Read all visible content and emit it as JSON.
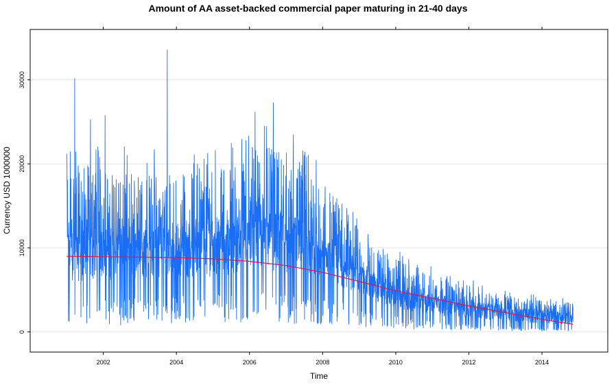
{
  "chart_data": {
    "type": "line",
    "title": "Amount of AA asset-backed commercial paper maturing in 21-40 days",
    "xlabel": "Time",
    "ylabel": "Currency USD 1000000",
    "xlim": [
      2000.0,
      2015.8
    ],
    "ylim": [
      -2400,
      36000
    ],
    "x_ticks": [
      2002,
      2004,
      2006,
      2008,
      2010,
      2012,
      2014
    ],
    "y_ticks": [
      0,
      10000,
      20000,
      30000
    ],
    "grid": "horizontal",
    "series": [
      {
        "color": "#1a6ef5",
        "kind": "daily-values",
        "x_range": [
          2001.0,
          2014.85
        ],
        "approx_band": [
          {
            "x": 2001.0,
            "low": 4000,
            "mid": 9000,
            "high": 20000
          },
          {
            "x": 2003.0,
            "low": 4000,
            "mid": 9500,
            "high": 19000
          },
          {
            "x": 2005.0,
            "low": 4500,
            "mid": 9500,
            "high": 19000
          },
          {
            "x": 2006.5,
            "low": 5000,
            "mid": 11000,
            "high": 22000
          },
          {
            "x": 2007.5,
            "low": 4500,
            "mid": 10000,
            "high": 20000
          },
          {
            "x": 2008.5,
            "low": 3500,
            "mid": 7500,
            "high": 15000
          },
          {
            "x": 2009.5,
            "low": 2500,
            "mid": 5000,
            "high": 10000
          },
          {
            "x": 2010.5,
            "low": 1500,
            "mid": 3500,
            "high": 7500
          },
          {
            "x": 2011.5,
            "low": 1000,
            "mid": 3000,
            "high": 6000
          },
          {
            "x": 2012.5,
            "low": 800,
            "mid": 2500,
            "high": 5000
          },
          {
            "x": 2013.5,
            "low": 500,
            "mid": 2000,
            "high": 4000
          },
          {
            "x": 2014.85,
            "low": 300,
            "mid": 1500,
            "high": 3500
          }
        ],
        "spikes": [
          {
            "x": 2001.22,
            "y": 30200
          },
          {
            "x": 2003.75,
            "y": 33600
          },
          {
            "x": 2002.05,
            "y": 25800
          },
          {
            "x": 2001.65,
            "y": 25300
          },
          {
            "x": 2006.65,
            "y": 27300
          },
          {
            "x": 2006.15,
            "y": 26200
          },
          {
            "x": 2001.0,
            "y": 21200
          },
          {
            "x": 2007.2,
            "y": 23500
          },
          {
            "x": 2005.9,
            "y": 22800
          }
        ]
      },
      {
        "color": "#e8143c",
        "kind": "trend",
        "x": [
          2001.0,
          2002.0,
          2003.0,
          2004.0,
          2005.0,
          2006.0,
          2007.0,
          2008.0,
          2009.0,
          2010.0,
          2011.0,
          2012.0,
          2013.0,
          2014.0,
          2014.85
        ],
        "values": [
          9000,
          8950,
          8900,
          8850,
          8700,
          8400,
          7900,
          7100,
          6000,
          4900,
          4000,
          3100,
          2300,
          1500,
          900
        ]
      }
    ]
  }
}
